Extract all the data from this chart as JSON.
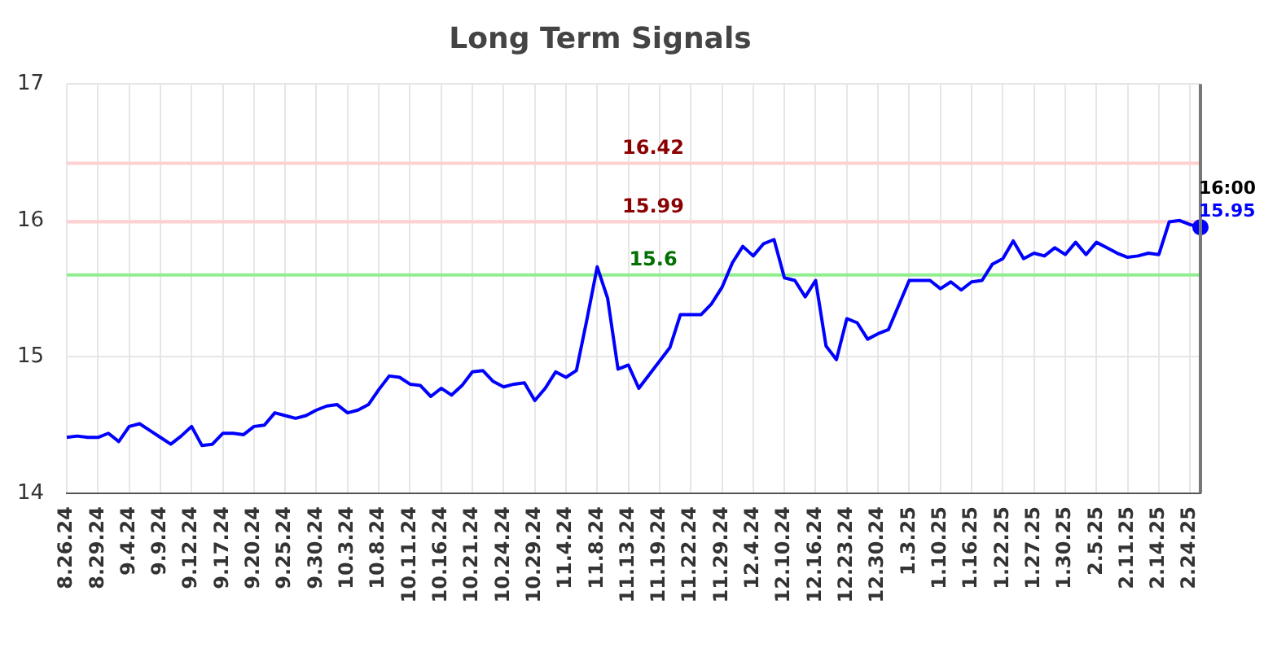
{
  "chart_data": {
    "type": "line",
    "title": "Long Term Signals",
    "categories": [
      "8.26.24",
      null,
      null,
      "8.29.24",
      null,
      null,
      "9.4.24",
      null,
      null,
      "9.9.24",
      null,
      null,
      "9.12.24",
      null,
      null,
      "9.17.24",
      null,
      null,
      "9.20.24",
      null,
      null,
      "9.25.24",
      null,
      null,
      "9.30.24",
      null,
      null,
      "10.3.24",
      null,
      null,
      "10.8.24",
      null,
      null,
      "10.11.24",
      null,
      null,
      "10.16.24",
      null,
      null,
      "10.21.24",
      null,
      null,
      "10.24.24",
      null,
      null,
      "10.29.24",
      null,
      null,
      "11.4.24",
      null,
      null,
      "11.8.24",
      null,
      null,
      "11.13.24",
      null,
      null,
      "11.19.24",
      null,
      null,
      "11.22.24",
      null,
      null,
      "11.29.24",
      null,
      null,
      "12.4.24",
      null,
      null,
      "12.10.24",
      null,
      null,
      "12.16.24",
      null,
      null,
      "12.23.24",
      null,
      null,
      "12.30.24",
      null,
      null,
      "1.3.25",
      null,
      null,
      "1.10.25",
      null,
      null,
      "1.16.25",
      null,
      null,
      "1.22.25",
      null,
      null,
      "1.27.25",
      null,
      null,
      "1.30.25",
      null,
      null,
      "2.5.25",
      null,
      null,
      "2.11.25",
      null,
      null,
      "2.14.25",
      null,
      null,
      "2.24.25",
      null
    ],
    "series": [
      {
        "color": "#0000ff",
        "values": [
          14.41,
          14.42,
          14.41,
          14.41,
          14.44,
          14.38,
          14.49,
          14.51,
          14.46,
          14.41,
          14.36,
          14.42,
          14.49,
          14.35,
          14.36,
          14.44,
          14.44,
          14.43,
          14.49,
          14.5,
          14.59,
          14.57,
          14.55,
          14.57,
          14.61,
          14.64,
          14.65,
          14.59,
          14.61,
          14.65,
          14.76,
          14.86,
          14.85,
          14.8,
          14.79,
          14.71,
          14.77,
          14.72,
          14.79,
          14.89,
          14.9,
          14.82,
          14.78,
          14.8,
          14.81,
          14.68,
          14.77,
          14.89,
          14.85,
          14.9,
          15.27,
          15.66,
          15.43,
          14.91,
          14.94,
          14.77,
          14.87,
          14.97,
          15.07,
          15.31,
          15.31,
          15.31,
          15.39,
          15.51,
          15.69,
          15.81,
          15.74,
          15.83,
          15.86,
          15.58,
          15.56,
          15.44,
          15.56,
          15.08,
          14.98,
          15.28,
          15.25,
          15.13,
          15.17,
          15.2,
          15.38,
          15.56,
          15.56,
          15.56,
          15.5,
          15.55,
          15.49,
          15.55,
          15.56,
          15.68,
          15.72,
          15.85,
          15.72,
          15.76,
          15.74,
          15.8,
          15.75,
          15.84,
          15.75,
          15.84,
          15.8,
          15.76,
          15.73,
          15.74,
          15.76,
          15.75,
          15.99,
          16.0,
          15.97,
          15.95
        ],
        "value_labels": [
          null,
          null,
          null,
          null,
          null,
          null,
          null,
          null,
          null,
          null,
          null,
          null,
          null,
          null,
          null,
          null,
          null,
          null,
          null,
          null,
          null,
          null,
          null,
          null,
          null,
          null,
          null,
          null,
          null,
          null,
          null,
          null,
          null,
          null,
          null,
          null,
          null,
          null,
          null,
          null,
          null,
          null,
          null,
          null,
          null,
          null,
          null,
          null,
          null,
          null,
          null,
          null,
          null,
          null,
          null,
          null,
          null,
          null,
          null,
          null,
          null,
          null,
          null,
          null,
          null,
          null,
          null,
          null,
          null,
          null,
          null,
          null,
          null,
          null,
          null,
          null,
          null,
          null,
          null,
          null,
          null,
          null,
          null,
          null,
          null,
          null,
          null,
          null,
          null,
          null,
          null,
          null,
          null,
          null,
          null,
          null,
          null,
          null,
          null,
          null,
          null,
          null,
          null,
          null,
          null,
          null,
          null,
          null,
          null,
          "15.95"
        ]
      }
    ],
    "ylim": [
      14,
      17
    ],
    "yticks": [
      14,
      15,
      16,
      17
    ],
    "grid": true,
    "marker": "none",
    "line_style": "solid",
    "ref_lines": [
      {
        "axis": "y",
        "value": 16.42,
        "label": "16.42",
        "color": "#ffd0d0"
      },
      {
        "axis": "y",
        "value": 15.99,
        "label": "15.99",
        "color": "#ffd0d0"
      },
      {
        "axis": "y",
        "value": 15.6,
        "label": "15.6",
        "color": "#90ee90"
      }
    ],
    "annotations": [
      "16:00"
    ]
  }
}
